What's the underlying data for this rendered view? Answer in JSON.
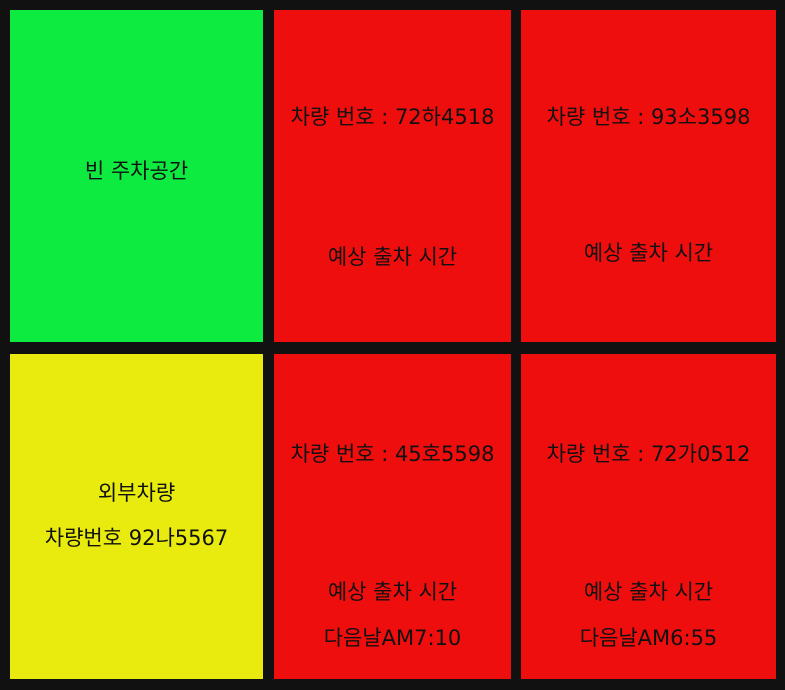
{
  "colors": {
    "empty": "#0DEB40",
    "occupied": "#EE0E0E",
    "external": "#E9EB0E",
    "background": "#111111"
  },
  "spots": [
    {
      "status": "empty",
      "label": "빈 주차공간"
    },
    {
      "status": "occupied",
      "plate": "차량 번호 : 72하4518",
      "exit_label": "예상 출차 시간"
    },
    {
      "status": "occupied",
      "plate": "차량 번호 : 93소3598",
      "exit_label": "예상 출차 시간"
    },
    {
      "status": "external",
      "label": "외부차량",
      "plate": "차량번호 92나5567"
    },
    {
      "status": "occupied",
      "plate": "차량 번호 : 45호5598",
      "exit_label": "예상 출차 시간",
      "exit_time": "다음날AM7:10"
    },
    {
      "status": "occupied",
      "plate": "차량 번호 : 72가0512",
      "exit_label": "예상 출차 시간",
      "exit_time": "다음날AM6:55"
    }
  ]
}
